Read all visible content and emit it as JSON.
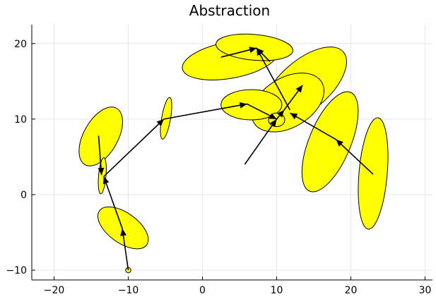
{
  "chart_data": {
    "type": "scatter",
    "title": "Abstraction",
    "xlabel": "",
    "ylabel": "",
    "xlim": [
      -23,
      31
    ],
    "ylim": [
      -11.3,
      22.5
    ],
    "grid": true,
    "x_ticks": [
      -20,
      -10,
      0,
      10,
      20,
      30
    ],
    "y_ticks": [
      -10,
      0,
      10,
      20
    ],
    "x_tick_labels": [
      "−20",
      "−10",
      "0",
      "10",
      "20",
      "30"
    ],
    "y_tick_labels": [
      "−10",
      "0",
      "10",
      "20"
    ],
    "ellipses": [
      {
        "cx": 23.0,
        "cy": 2.8,
        "rx": 7.4,
        "ry": 1.9,
        "angle": 85,
        "fill": "#ffff00"
      },
      {
        "cx": 17.2,
        "cy": 7.0,
        "rx": 7.1,
        "ry": 2.8,
        "angle": 67,
        "fill": "#ffff00"
      },
      {
        "cx": 13.8,
        "cy": 14.5,
        "rx": 6.8,
        "ry": 3.3,
        "angle": 40,
        "fill": "#ffff00"
      },
      {
        "cx": 11.5,
        "cy": 12.2,
        "rx": 5.3,
        "ry": 3.3,
        "angle": 30,
        "fill": "#ffff00"
      },
      {
        "cx": 3.7,
        "cy": 17.8,
        "rx": 6.5,
        "ry": 2.4,
        "angle": 10,
        "fill": "#ffff00"
      },
      {
        "cx": 7.0,
        "cy": 19.5,
        "rx": 5.2,
        "ry": 1.7,
        "angle": -5,
        "fill": "#ffff00"
      },
      {
        "cx": 6.6,
        "cy": 11.9,
        "rx": 4.1,
        "ry": 2.0,
        "angle": 0,
        "fill": "#ffff00"
      },
      {
        "cx": 10.0,
        "cy": 9.9,
        "rx": 1.1,
        "ry": 0.9,
        "angle": 0,
        "fill": "#ffff00"
      },
      {
        "cx": -13.7,
        "cy": 7.7,
        "rx": 4.3,
        "ry": 2.3,
        "angle": 60,
        "fill": "#ffff00"
      },
      {
        "cx": -4.9,
        "cy": 10.1,
        "rx": 2.8,
        "ry": 0.6,
        "angle": 80,
        "fill": "#ffff00"
      },
      {
        "cx": -13.5,
        "cy": 2.5,
        "rx": 2.4,
        "ry": 0.5,
        "angle": 85,
        "fill": "#ffff00"
      },
      {
        "cx": -10.7,
        "cy": -4.4,
        "rx": 3.9,
        "ry": 2.0,
        "angle": -35,
        "fill": "#ffff00"
      },
      {
        "cx": -10.0,
        "cy": -10.0,
        "rx": 0.35,
        "ry": 0.35,
        "angle": 0,
        "fill": "#ffff00"
      }
    ],
    "arrows": [
      {
        "x1": -10.0,
        "y1": -10.0,
        "x2": -10.8,
        "y2": -4.5
      },
      {
        "x1": -10.8,
        "y1": -4.5,
        "x2": -13.3,
        "y2": 2.4
      },
      {
        "x1": -14.0,
        "y1": 7.8,
        "x2": -13.6,
        "y2": 2.6
      },
      {
        "x1": -13.3,
        "y1": 2.4,
        "x2": -5.2,
        "y2": 10.0
      },
      {
        "x1": -5.2,
        "y1": 10.0,
        "x2": 6.0,
        "y2": 12.0
      },
      {
        "x1": 6.0,
        "y1": 12.0,
        "x2": 10.0,
        "y2": 10.0
      },
      {
        "x1": 5.7,
        "y1": 4.0,
        "x2": 10.0,
        "y2": 10.0
      },
      {
        "x1": 10.0,
        "y1": 10.0,
        "x2": 11.0,
        "y2": 11.2
      },
      {
        "x1": 11.0,
        "y1": 11.2,
        "x2": 13.5,
        "y2": 14.5
      },
      {
        "x1": 11.8,
        "y1": 11.2,
        "x2": 7.3,
        "y2": 19.4
      },
      {
        "x1": 2.5,
        "y1": 18.2,
        "x2": 7.3,
        "y2": 19.4
      },
      {
        "x1": 9.1,
        "y1": 17.6,
        "x2": 7.3,
        "y2": 19.4
      },
      {
        "x1": 23.0,
        "y1": 2.7,
        "x2": 18.0,
        "y2": 7.3
      },
      {
        "x1": 18.0,
        "y1": 7.3,
        "x2": 11.8,
        "y2": 10.8
      }
    ]
  }
}
